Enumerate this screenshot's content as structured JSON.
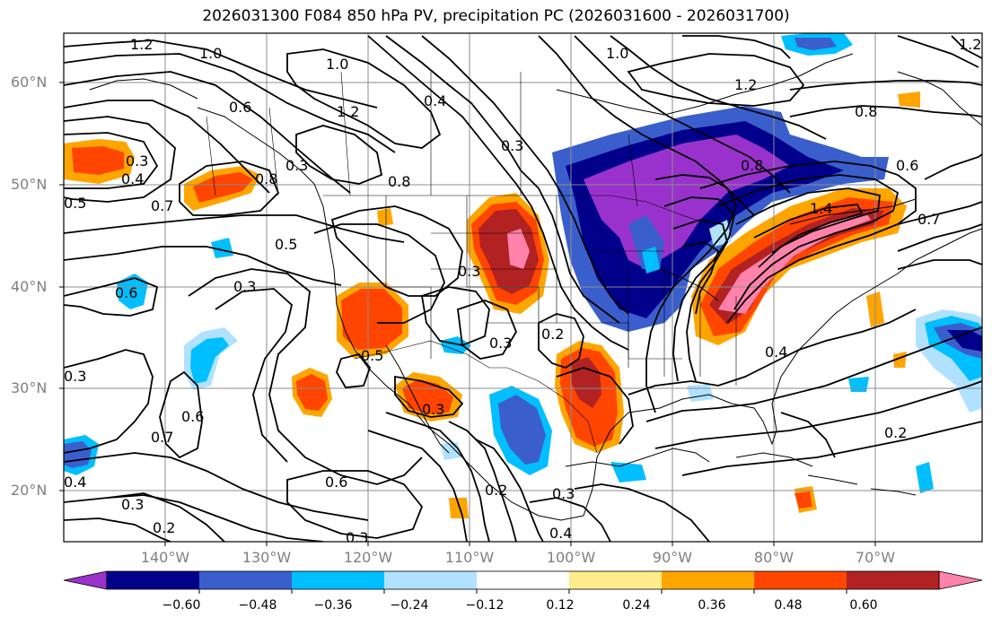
{
  "title": "2026031300 F084 850 hPa PV, precipitation PC (2026031600 - 2026031700)",
  "lat_ticks": [
    "60°N",
    "50°N",
    "40°N",
    "30°N",
    "20°N"
  ],
  "lon_ticks": [
    "140°W",
    "130°W",
    "120°W",
    "110°W",
    "100°W",
    "90°W",
    "80°W",
    "70°W"
  ],
  "colorbar": {
    "tick_labels": [
      "−0.60",
      "−0.48",
      "−0.36",
      "−0.24",
      "−0.12",
      "0.12",
      "0.24",
      "0.36",
      "0.48",
      "0.60"
    ],
    "colors": [
      "#9932cc",
      "#00008b",
      "#3a5fcd",
      "#00bfff",
      "#b0e2ff",
      "#ffffff",
      "#ffec8b",
      "#ffa500",
      "#ff4500",
      "#b22222",
      "#ff82ab"
    ]
  },
  "contour_labels": [
    "1.2",
    "1.0",
    "1.0",
    "1.2",
    "0.6",
    "0.3",
    "0.4",
    "0.7",
    "0.5",
    "0.8",
    "0.3",
    "0.5",
    "0.3",
    "0.6",
    "0.3",
    "0.4",
    "0.6",
    "0.7",
    "0.6",
    "0.3",
    "0.2",
    "0.3",
    "0.3",
    "0.3",
    "0.3",
    "0.2",
    "0.3",
    "0.4",
    "0.5",
    "0.2",
    "0.4",
    "0.3",
    "0.8",
    "1.2",
    "1.0",
    "0.8",
    "1.4",
    "0.6",
    "0.4",
    "0.2",
    "0.7",
    "1.2",
    "0.8"
  ]
}
